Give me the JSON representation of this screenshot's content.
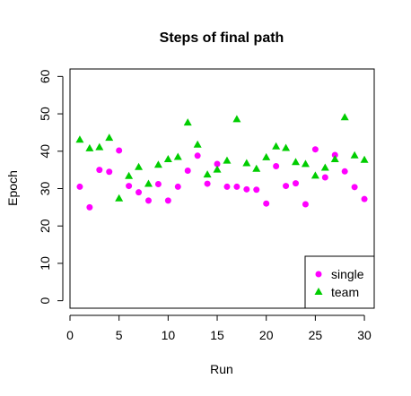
{
  "chart_data": {
    "type": "scatter",
    "title": "Steps of final path",
    "xlabel": "Run",
    "ylabel": "Epoch",
    "xlim": [
      0,
      31
    ],
    "ylim": [
      -2,
      62
    ],
    "xticks": [
      "0",
      "5",
      "10",
      "15",
      "20",
      "25",
      "30"
    ],
    "yticks": [
      "0",
      "10",
      "20",
      "30",
      "40",
      "50",
      "60"
    ],
    "grid": false,
    "legend_position": "bottom-right",
    "x": [
      1,
      2,
      3,
      4,
      5,
      6,
      7,
      8,
      9,
      10,
      11,
      12,
      13,
      14,
      15,
      16,
      17,
      18,
      19,
      20,
      21,
      22,
      23,
      24,
      25,
      26,
      27,
      28,
      29,
      30
    ],
    "series": [
      {
        "name": "single",
        "marker": "circle",
        "color": "#ff00ff",
        "values": [
          30.5,
          25,
          35,
          34.5,
          40.2,
          30.7,
          29,
          26.8,
          31.2,
          26.8,
          30.5,
          34.8,
          38.8,
          31.3,
          36.6,
          30.5,
          30.5,
          29.8,
          29.7,
          26,
          36,
          30.7,
          31.4,
          25.8,
          40.5,
          33,
          39,
          34.6,
          30.4,
          27.2
        ]
      },
      {
        "name": "team",
        "marker": "triangle",
        "color": "#00cd00",
        "values": [
          43,
          40.7,
          41,
          43.5,
          27.3,
          33.3,
          35.7,
          31.2,
          36.3,
          37.8,
          38.4,
          47.6,
          41.7,
          33.7,
          35,
          37.4,
          48.5,
          36.7,
          35.2,
          38.3,
          41.2,
          40.8,
          37,
          36.5,
          33.4,
          35.5,
          37.8,
          49,
          38.8,
          37.6
        ]
      }
    ]
  }
}
